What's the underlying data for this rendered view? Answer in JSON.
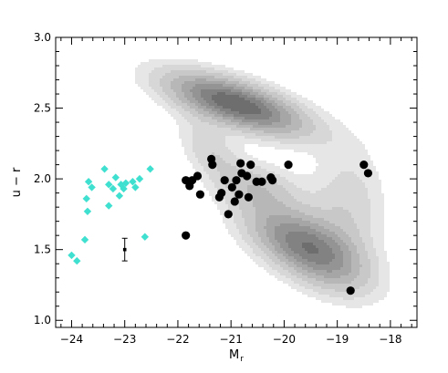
{
  "chart_data": {
    "type": "scatter",
    "xlabel_main": "M",
    "xlabel_sub": "r",
    "ylabel": "u − r",
    "xlim": [
      -24.3,
      -17.5
    ],
    "ylim": [
      0.95,
      3.0
    ],
    "x_ticks": [
      -24,
      -23,
      -22,
      -21,
      -20,
      -19,
      -18
    ],
    "x_tick_labels": [
      "−24",
      "−23",
      "−22",
      "−21",
      "−20",
      "−19",
      "−18"
    ],
    "y_ticks": [
      1.0,
      1.5,
      2.0,
      2.5,
      3.0
    ],
    "y_tick_labels": [
      "1.0",
      "1.5",
      "2.0",
      "2.5",
      "3.0"
    ],
    "colors": {
      "diamond": "#40e0d0",
      "circle": "#000000",
      "contours": [
        "#e6e6e6",
        "#d7d7d7",
        "#c8c8c8",
        "#b7b7b7",
        "#a6a6a6",
        "#949494",
        "#828282",
        "#6e6e6e"
      ]
    },
    "density_components": [
      {
        "cx": -20.9,
        "cy": 2.53,
        "sx": 0.9,
        "sy": 0.15,
        "corr": -0.65,
        "weight": 1.0
      },
      {
        "cx": -19.6,
        "cy": 1.52,
        "sx": 0.75,
        "sy": 0.2,
        "corr": -0.6,
        "weight": 0.85
      },
      {
        "cx": -20.5,
        "cy": 1.95,
        "sx": 0.55,
        "sy": 0.12,
        "corr": -0.3,
        "weight": 0.3
      },
      {
        "cx": -18.8,
        "cy": 1.8,
        "sx": 0.5,
        "sy": 0.3,
        "corr": 0.0,
        "weight": 0.25
      },
      {
        "cx": -21.4,
        "cy": 2.2,
        "sx": 0.4,
        "sy": 0.15,
        "corr": -0.5,
        "weight": 0.25
      }
    ],
    "density_levels": [
      0.1,
      0.18,
      0.28,
      0.4,
      0.52,
      0.64,
      0.76,
      0.88
    ],
    "series": [
      {
        "marker": "diamond",
        "points": [
          [
            -24.0,
            1.46
          ],
          [
            -23.9,
            1.42
          ],
          [
            -23.75,
            1.57
          ],
          [
            -23.7,
            1.77
          ],
          [
            -23.72,
            1.86
          ],
          [
            -23.68,
            1.98
          ],
          [
            -23.62,
            1.94
          ],
          [
            -23.38,
            2.07
          ],
          [
            -23.3,
            1.81
          ],
          [
            -23.3,
            1.96
          ],
          [
            -23.22,
            1.93
          ],
          [
            -23.17,
            2.01
          ],
          [
            -23.1,
            1.88
          ],
          [
            -23.07,
            1.96
          ],
          [
            -23.02,
            1.93
          ],
          [
            -22.98,
            1.97
          ],
          [
            -22.85,
            1.98
          ],
          [
            -22.8,
            1.94
          ],
          [
            -22.72,
            2.0
          ],
          [
            -22.62,
            1.59
          ],
          [
            -22.52,
            2.07
          ]
        ]
      },
      {
        "marker": "circle",
        "points": [
          [
            -21.85,
            1.6
          ],
          [
            -21.85,
            1.99
          ],
          [
            -21.78,
            1.95
          ],
          [
            -21.73,
            1.99
          ],
          [
            -21.63,
            2.02
          ],
          [
            -21.58,
            1.89
          ],
          [
            -21.37,
            2.14
          ],
          [
            -21.35,
            2.1
          ],
          [
            -21.22,
            1.87
          ],
          [
            -21.18,
            1.9
          ],
          [
            -21.12,
            1.99
          ],
          [
            -21.05,
            1.75
          ],
          [
            -20.98,
            1.94
          ],
          [
            -20.93,
            1.84
          ],
          [
            -20.9,
            1.99
          ],
          [
            -20.85,
            1.89
          ],
          [
            -20.82,
            2.11
          ],
          [
            -20.8,
            2.04
          ],
          [
            -20.7,
            2.02
          ],
          [
            -20.67,
            1.87
          ],
          [
            -20.63,
            2.1
          ],
          [
            -20.52,
            1.98
          ],
          [
            -20.42,
            1.98
          ],
          [
            -20.25,
            2.01
          ],
          [
            -20.22,
            1.99
          ],
          [
            -19.92,
            2.1
          ],
          [
            -18.75,
            1.21
          ],
          [
            -18.5,
            2.1
          ],
          [
            -18.42,
            2.04
          ]
        ]
      },
      {
        "marker": "errorbar",
        "points": [
          [
            -23.0,
            1.5,
            0.08
          ]
        ]
      }
    ]
  }
}
